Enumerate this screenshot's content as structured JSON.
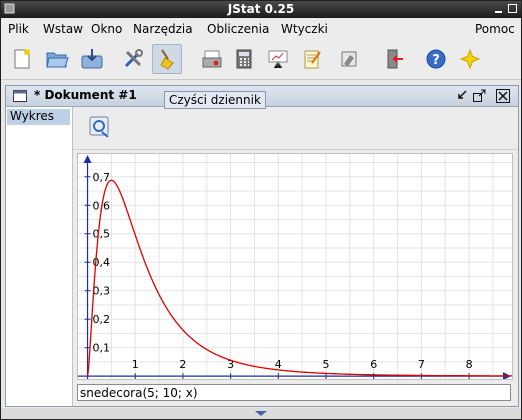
{
  "window": {
    "title": "JStat 0.25"
  },
  "menu": {
    "items": [
      "Plik",
      "Wstaw",
      "Okno",
      "Narzędzia",
      "Obliczenia",
      "Wtyczki"
    ],
    "help": "Pomoc"
  },
  "toolbar": {
    "tools": [
      "new-document-icon",
      "open-folder-icon",
      "save-icon",
      "tools-icon",
      "clear-log-broom-icon",
      "print-icon",
      "calculator-icon",
      "presentation-icon",
      "notepad-icon",
      "eraser-icon",
      "exit-door-icon",
      "help-icon",
      "star-icon"
    ],
    "selected": "clear-log-broom-icon",
    "tooltip": "Czyści dziennik"
  },
  "document": {
    "title": "* Dokument #1",
    "sidebar_item": "Wykres",
    "command": "snedecora(5; 10; x)"
  },
  "chart_data": {
    "type": "line",
    "function": "snedecora(5; 10; x)",
    "xlim": [
      -0.2,
      8.9
    ],
    "ylim": [
      -0.01,
      0.78
    ],
    "x_ticks": [
      "1",
      "2",
      "3",
      "4",
      "5",
      "6",
      "7",
      "8"
    ],
    "y_ticks": [
      "0,1",
      "0,2",
      "0,3",
      "0,4",
      "0,5",
      "0,6",
      "0,7"
    ],
    "grid": true,
    "line_color": "#e00000",
    "axis_color": "#1c2fa0",
    "df1": 5,
    "df2": 10
  }
}
